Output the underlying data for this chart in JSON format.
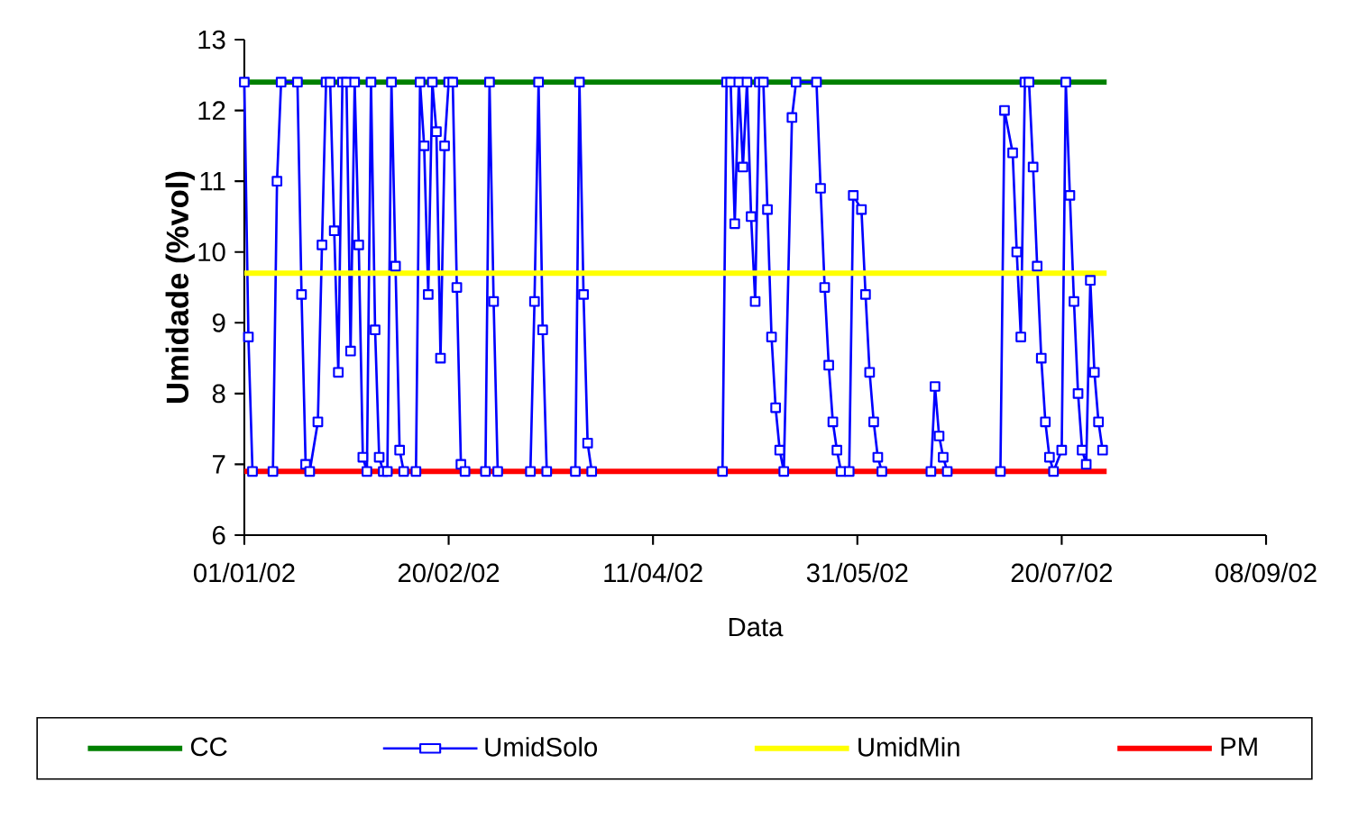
{
  "chart_data": {
    "type": "line",
    "xlabel": "Data",
    "ylabel": "Umidade (%vol)",
    "xlim": [
      "2002-01-01",
      "2002-09-08"
    ],
    "xticks": [
      {
        "value": "2002-01-01",
        "label": "01/01/02"
      },
      {
        "value": "2002-02-20",
        "label": "20/02/02"
      },
      {
        "value": "2002-04-11",
        "label": "11/04/02"
      },
      {
        "value": "2002-05-31",
        "label": "31/05/02"
      },
      {
        "value": "2002-07-20",
        "label": "20/07/02"
      },
      {
        "value": "2002-09-08",
        "label": "08/09/02"
      }
    ],
    "ylim": [
      6,
      13
    ],
    "yticks": [
      6,
      7,
      8,
      9,
      10,
      11,
      12,
      13
    ],
    "legend": "bottom",
    "grid": false,
    "series": [
      {
        "name": "CC",
        "color": "#008000",
        "marker": "none",
        "x": [
          "2002-01-01",
          "2002-07-31"
        ],
        "values": [
          12.4,
          12.4
        ]
      },
      {
        "name": "UmidSolo",
        "color": "#0000ff",
        "marker": "square",
        "x": [
          "2002-01-01",
          "2002-01-02",
          "2002-01-03",
          "2002-01-08",
          "2002-01-09",
          "2002-01-10",
          "2002-01-14",
          "2002-01-15",
          "2002-01-16",
          "2002-01-17",
          "2002-01-19",
          "2002-01-20",
          "2002-01-21",
          "2002-01-22",
          "2002-01-23",
          "2002-01-24",
          "2002-01-25",
          "2002-01-26",
          "2002-01-27",
          "2002-01-28",
          "2002-01-29",
          "2002-01-30",
          "2002-01-31",
          "2002-02-01",
          "2002-02-02",
          "2002-02-03",
          "2002-02-04",
          "2002-02-05",
          "2002-02-06",
          "2002-02-07",
          "2002-02-08",
          "2002-02-09",
          "2002-02-12",
          "2002-02-13",
          "2002-02-14",
          "2002-02-15",
          "2002-02-16",
          "2002-02-17",
          "2002-02-18",
          "2002-02-19",
          "2002-02-20",
          "2002-02-21",
          "2002-02-22",
          "2002-02-23",
          "2002-02-24",
          "2002-03-01",
          "2002-03-02",
          "2002-03-03",
          "2002-03-04",
          "2002-03-12",
          "2002-03-13",
          "2002-03-14",
          "2002-03-15",
          "2002-03-16",
          "2002-03-23",
          "2002-03-24",
          "2002-03-25",
          "2002-03-26",
          "2002-03-27",
          "2002-04-28",
          "2002-04-29",
          "2002-04-30",
          "2002-05-01",
          "2002-05-02",
          "2002-05-03",
          "2002-05-04",
          "2002-05-05",
          "2002-05-06",
          "2002-05-07",
          "2002-05-08",
          "2002-05-09",
          "2002-05-10",
          "2002-05-11",
          "2002-05-12",
          "2002-05-13",
          "2002-05-15",
          "2002-05-16",
          "2002-05-21",
          "2002-05-22",
          "2002-05-23",
          "2002-05-24",
          "2002-05-25",
          "2002-05-26",
          "2002-05-27",
          "2002-05-29",
          "2002-05-30",
          "2002-06-01",
          "2002-06-02",
          "2002-06-03",
          "2002-06-04",
          "2002-06-05",
          "2002-06-06",
          "2002-06-18",
          "2002-06-19",
          "2002-06-20",
          "2002-06-21",
          "2002-06-22",
          "2002-07-05",
          "2002-07-06",
          "2002-07-08",
          "2002-07-09",
          "2002-07-10",
          "2002-07-11",
          "2002-07-12",
          "2002-07-13",
          "2002-07-14",
          "2002-07-15",
          "2002-07-16",
          "2002-07-17",
          "2002-07-18",
          "2002-07-20",
          "2002-07-21",
          "2002-07-22",
          "2002-07-23",
          "2002-07-24",
          "2002-07-25",
          "2002-07-26",
          "2002-07-27",
          "2002-07-28",
          "2002-07-29",
          "2002-07-30"
        ],
        "values": [
          12.4,
          8.8,
          6.9,
          6.9,
          11.0,
          12.4,
          12.4,
          9.4,
          7.0,
          6.9,
          7.6,
          10.1,
          12.4,
          12.4,
          10.3,
          8.3,
          12.4,
          12.4,
          8.6,
          12.4,
          10.1,
          7.1,
          6.9,
          12.4,
          8.9,
          7.1,
          6.9,
          6.9,
          12.4,
          9.8,
          7.2,
          6.9,
          6.9,
          12.4,
          11.5,
          9.4,
          12.4,
          11.7,
          8.5,
          11.5,
          12.4,
          12.4,
          9.5,
          7.0,
          6.9,
          6.9,
          12.4,
          9.3,
          6.9,
          6.9,
          9.3,
          12.4,
          8.9,
          6.9,
          6.9,
          12.4,
          9.4,
          7.3,
          6.9,
          6.9,
          12.4,
          12.4,
          10.4,
          12.4,
          11.2,
          12.4,
          10.5,
          9.3,
          12.4,
          12.4,
          10.6,
          8.8,
          7.8,
          7.2,
          6.9,
          11.9,
          12.4,
          12.4,
          10.9,
          9.5,
          8.4,
          7.6,
          7.2,
          6.9,
          6.9,
          10.8,
          10.6,
          9.4,
          8.3,
          7.6,
          7.1,
          6.9,
          6.9,
          8.1,
          7.4,
          7.1,
          6.9,
          6.9,
          12.0,
          11.4,
          10.0,
          8.8,
          12.4,
          12.4,
          11.2,
          9.8,
          8.5,
          7.6,
          7.1,
          6.9,
          7.2,
          12.4,
          10.8,
          9.3,
          8.0,
          7.2,
          7.0,
          9.6,
          8.3,
          7.6,
          7.2
        ]
      },
      {
        "name": "UmidMin",
        "color": "#ffff00",
        "marker": "none",
        "x": [
          "2002-01-01",
          "2002-07-31"
        ],
        "values": [
          9.7,
          9.7
        ]
      },
      {
        "name": "PM",
        "color": "#ff0000",
        "marker": "none",
        "x": [
          "2002-01-01",
          "2002-07-31"
        ],
        "values": [
          6.9,
          6.9
        ]
      }
    ]
  }
}
